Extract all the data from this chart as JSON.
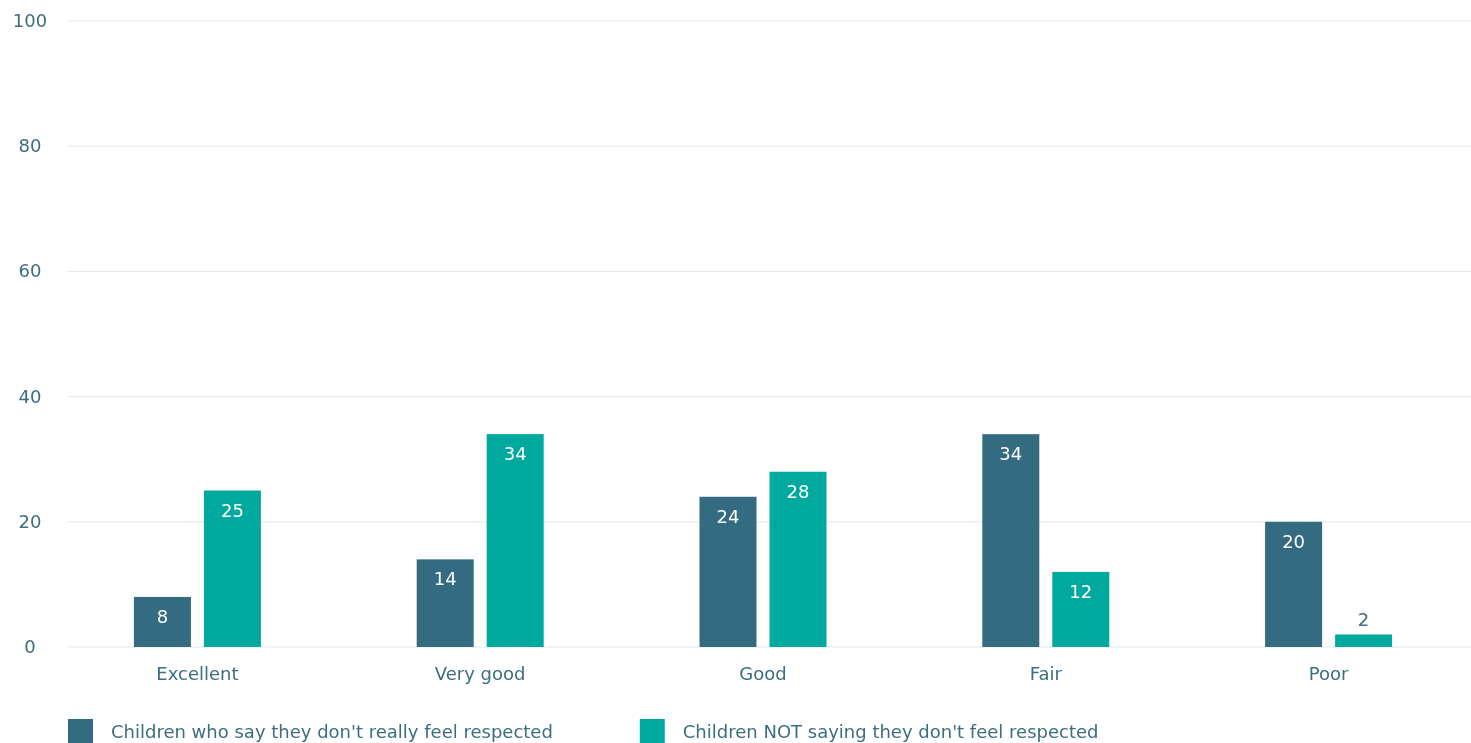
{
  "chart_data": {
    "type": "bar",
    "categories": [
      "Excellent",
      "Very good",
      "Good",
      "Fair",
      "Poor"
    ],
    "series": [
      {
        "name": "Children who say they don't really feel respected",
        "color": "#336b80",
        "values": [
          8,
          14,
          24,
          34,
          20
        ]
      },
      {
        "name": "Children NOT saying they don't feel respected",
        "color": "#00a99d",
        "values": [
          25,
          34,
          28,
          12,
          2
        ]
      }
    ],
    "ylim": [
      0,
      100
    ],
    "yticks": [
      0,
      20,
      40,
      60,
      80,
      100
    ],
    "grid": "y",
    "legend": "bottom left",
    "data_labels": true
  }
}
